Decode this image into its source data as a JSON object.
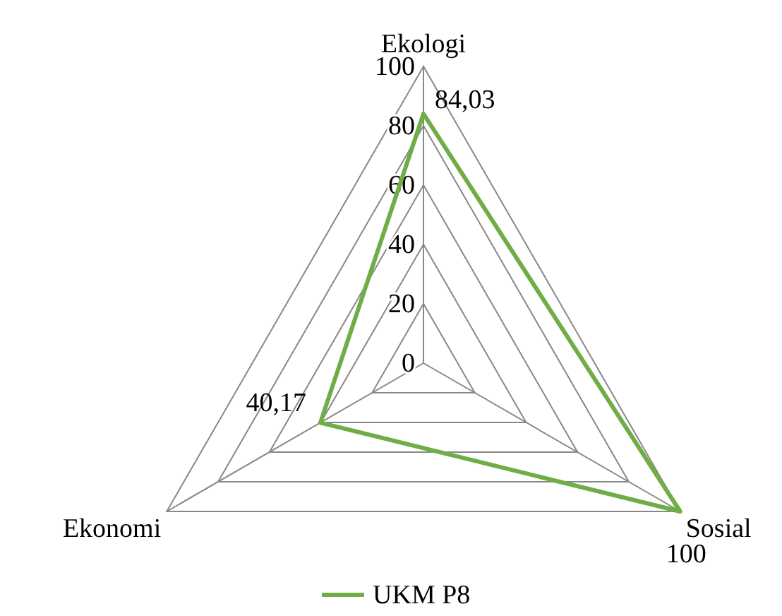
{
  "chart_data": {
    "type": "radar",
    "categories": [
      "Ekologi",
      "Sosial",
      "Ekonomi"
    ],
    "series": [
      {
        "name": "UKM P8",
        "color": "#70ad47",
        "values": [
          84.03,
          100,
          40.17
        ],
        "value_labels": [
          "84,03",
          "100",
          "40,17"
        ]
      }
    ],
    "ylim": [
      0,
      100
    ],
    "yticks": [
      0,
      20,
      40,
      60,
      80,
      100
    ],
    "grid": true,
    "legend": "bottom",
    "marker": "none"
  }
}
